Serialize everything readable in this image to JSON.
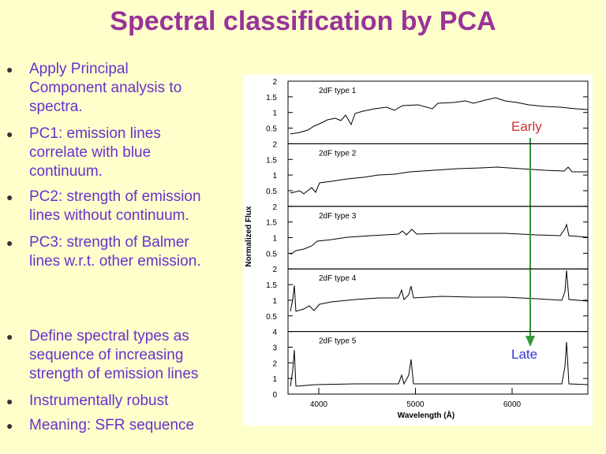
{
  "header": {
    "title": "Spectral classification by PCA"
  },
  "bullets": [
    {
      "lines": [
        "Apply Principal",
        "Component analysis to",
        "spectra."
      ]
    },
    {
      "lines": [
        "PC1: emission lines",
        "correlate with blue",
        "continuum."
      ]
    },
    {
      "lines": [
        "PC2: strength of emission",
        "lines without continuum."
      ]
    },
    {
      "lines": [
        "PC3: strength of Balmer",
        "lines w.r.t. other emission."
      ]
    },
    {
      "lines": [
        "Define spectral types as",
        "sequence of increasing",
        "strength of emission lines"
      ]
    },
    {
      "lines": [
        "Instrumentally robust"
      ]
    },
    {
      "lines": [
        "Meaning: SFR sequence"
      ]
    }
  ],
  "figure": {
    "y_label": "Normalized Flux",
    "x_label": "Wavelength (Å)",
    "x_ticks": [
      4000,
      5000,
      6000
    ],
    "panels": [
      {
        "label": "2dF type 1",
        "ticks": [
          "2",
          "1.5",
          "1",
          "0.5"
        ]
      },
      {
        "label": "2dF type 2",
        "ticks": [
          "2",
          "1.5",
          "1",
          "0.5"
        ]
      },
      {
        "label": "2dF type 3",
        "ticks": [
          "2",
          "1.5",
          "1",
          "0.5"
        ]
      },
      {
        "label": "2dF type 4",
        "ticks": [
          "2",
          "1.5",
          "1",
          "0.5"
        ]
      },
      {
        "label": "2dF type 5",
        "ticks": [
          "4",
          "3",
          "2",
          "1",
          "0"
        ]
      }
    ],
    "early": "Early",
    "late": "Late"
  }
}
